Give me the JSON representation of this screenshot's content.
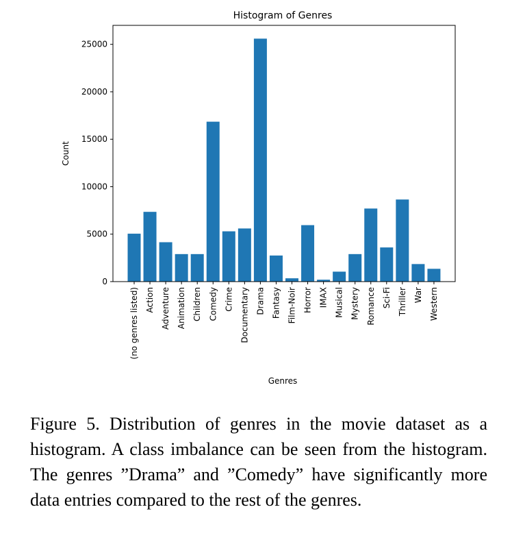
{
  "chart_data": {
    "type": "bar",
    "title": "Histogram of Genres",
    "xlabel": "Genres",
    "ylabel": "Count",
    "ylim": [
      0,
      27000
    ],
    "yticks": [
      0,
      5000,
      10000,
      15000,
      20000,
      25000
    ],
    "categories": [
      "(no genres listed)",
      "Action",
      "Adventure",
      "Animation",
      "Children",
      "Comedy",
      "Crime",
      "Documentary",
      "Drama",
      "Fantasy",
      "Film-Noir",
      "Horror",
      "IMAX",
      "Musical",
      "Mystery",
      "Romance",
      "Sci-Fi",
      "Thriller",
      "War",
      "Western"
    ],
    "values": [
      5050,
      7350,
      4150,
      2900,
      2900,
      16850,
      5300,
      5600,
      25600,
      2750,
      350,
      5950,
      200,
      1050,
      2900,
      7700,
      3600,
      8650,
      1850,
      1350
    ],
    "bar_color": "#1f77b4",
    "grid": false
  },
  "caption": "Figure 5. Distribution of genres in the movie dataset as a histogram. A class imbalance can be seen from the histogram. The genres ”Drama” and ”Comedy” have significantly more data entries compared to the rest of the genres."
}
